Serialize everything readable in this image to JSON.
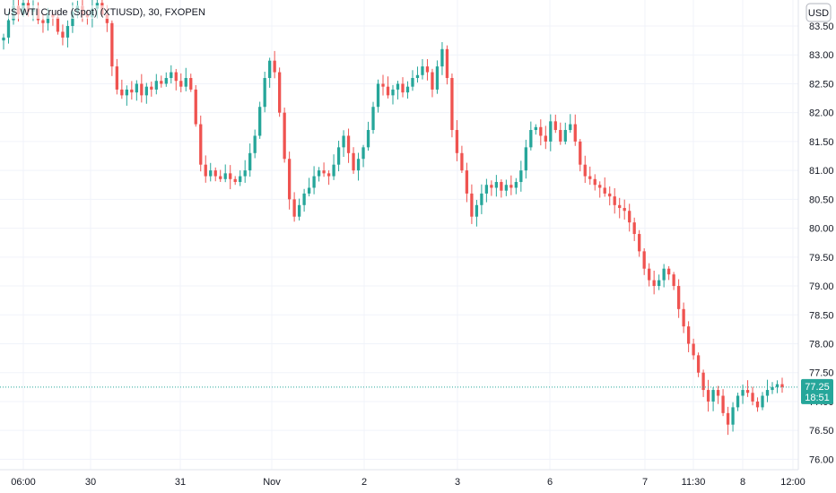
{
  "chart_data": {
    "type": "candlestick",
    "title": "US WTI Crude (Spot) (XTIUSD), 30, FXOPEN",
    "currency_label": "USD",
    "y_ticks": [
      "83.50",
      "83.00",
      "82.50",
      "82.00",
      "81.50",
      "81.00",
      "80.50",
      "80.00",
      "79.50",
      "79.00",
      "78.50",
      "78.00",
      "77.50",
      "77.00",
      "76.50",
      "76.00"
    ],
    "x_ticks": [
      "06:00",
      "30",
      "31",
      "Nov",
      "2",
      "3",
      "6",
      "7",
      "11:30",
      "8",
      "12:00"
    ],
    "ylim": [
      75.82,
      83.95
    ],
    "grid": true,
    "last_price": "77.25",
    "countdown": "18:51",
    "colors": {
      "up": "#26a69a",
      "down": "#ef5350",
      "badge": "#26a69a",
      "grid": "#f0f3fa",
      "axis_text": "#131722"
    },
    "closes": [
      83.3,
      83.6,
      83.85,
      83.7,
      83.9,
      83.75,
      83.8,
      83.6,
      83.55,
      83.7,
      83.65,
      83.4,
      83.3,
      83.5,
      83.75,
      83.85,
      83.7,
      83.65,
      83.8,
      83.9,
      83.7,
      83.55,
      82.8,
      82.4,
      82.3,
      82.4,
      82.35,
      82.5,
      82.3,
      82.45,
      82.4,
      82.55,
      82.5,
      82.6,
      82.7,
      82.55,
      82.45,
      82.6,
      82.4,
      81.8,
      81.1,
      80.9,
      81.0,
      80.9,
      80.85,
      80.95,
      80.85,
      80.8,
      80.9,
      81.0,
      81.3,
      81.6,
      82.1,
      82.6,
      82.9,
      82.7,
      82.0,
      81.2,
      80.5,
      80.2,
      80.4,
      80.6,
      80.7,
      80.9,
      81.0,
      80.95,
      80.9,
      81.1,
      81.4,
      81.6,
      81.3,
      81.0,
      81.2,
      81.4,
      81.7,
      82.1,
      82.5,
      82.45,
      82.3,
      82.4,
      82.5,
      82.35,
      82.45,
      82.6,
      82.65,
      82.8,
      82.7,
      82.4,
      82.8,
      83.1,
      82.6,
      81.7,
      81.3,
      81.0,
      80.6,
      80.2,
      80.4,
      80.6,
      80.75,
      80.7,
      80.8,
      80.65,
      80.75,
      80.7,
      80.8,
      81.0,
      81.4,
      81.7,
      81.75,
      81.6,
      81.5,
      81.85,
      81.7,
      81.5,
      81.7,
      81.8,
      81.5,
      81.1,
      80.9,
      80.85,
      80.75,
      80.7,
      80.6,
      80.55,
      80.4,
      80.35,
      80.3,
      80.1,
      79.9,
      79.6,
      79.3,
      79.1,
      79.0,
      79.1,
      79.3,
      79.2,
      79.0,
      78.6,
      78.3,
      78.0,
      77.8,
      77.5,
      77.2,
      77.0,
      77.2,
      77.1,
      76.8,
      76.6,
      76.9,
      77.1,
      77.2,
      77.15,
      77.0,
      76.9,
      77.1,
      77.2,
      77.25,
      77.3,
      77.25
    ]
  }
}
